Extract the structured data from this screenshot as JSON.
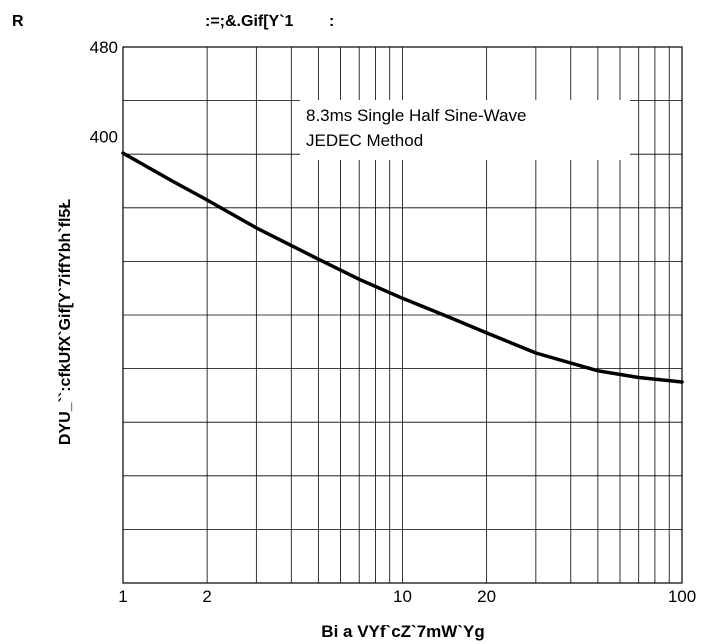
{
  "chart_data": {
    "type": "line",
    "figure_label": "R",
    "title": ":=;&.Gif[Y`1        :",
    "xlabel": "Bi a VYf`cZ`7mW`Yg",
    "ylabel": "DYU_``:cfkUfX`Gif[Y`7iffYbh`fl5Ł",
    "xscale": "log",
    "xlim": [
      1,
      100
    ],
    "ylim": [
      0,
      480
    ],
    "x_tick_labels": [
      {
        "value": 1,
        "label": "1"
      },
      {
        "value": 2,
        "label": "2"
      },
      {
        "value": 10,
        "label": "10"
      },
      {
        "value": 20,
        "label": "20"
      },
      {
        "value": 100,
        "label": "100"
      }
    ],
    "y_tick_labels": [
      {
        "value": 400,
        "label": "400"
      },
      {
        "value": 480,
        "label": "480"
      }
    ],
    "annotation": [
      "8.3ms Single Half Sine-Wave",
      "JEDEC Method"
    ],
    "grid": true,
    "series": [
      {
        "x": [
          1,
          1.5,
          2,
          3,
          5,
          7,
          10,
          15,
          20,
          30,
          50,
          70,
          100
        ],
        "y": [
          385,
          360,
          343,
          318,
          290,
          272,
          255,
          237,
          224,
          206,
          190,
          184,
          180
        ]
      }
    ]
  }
}
